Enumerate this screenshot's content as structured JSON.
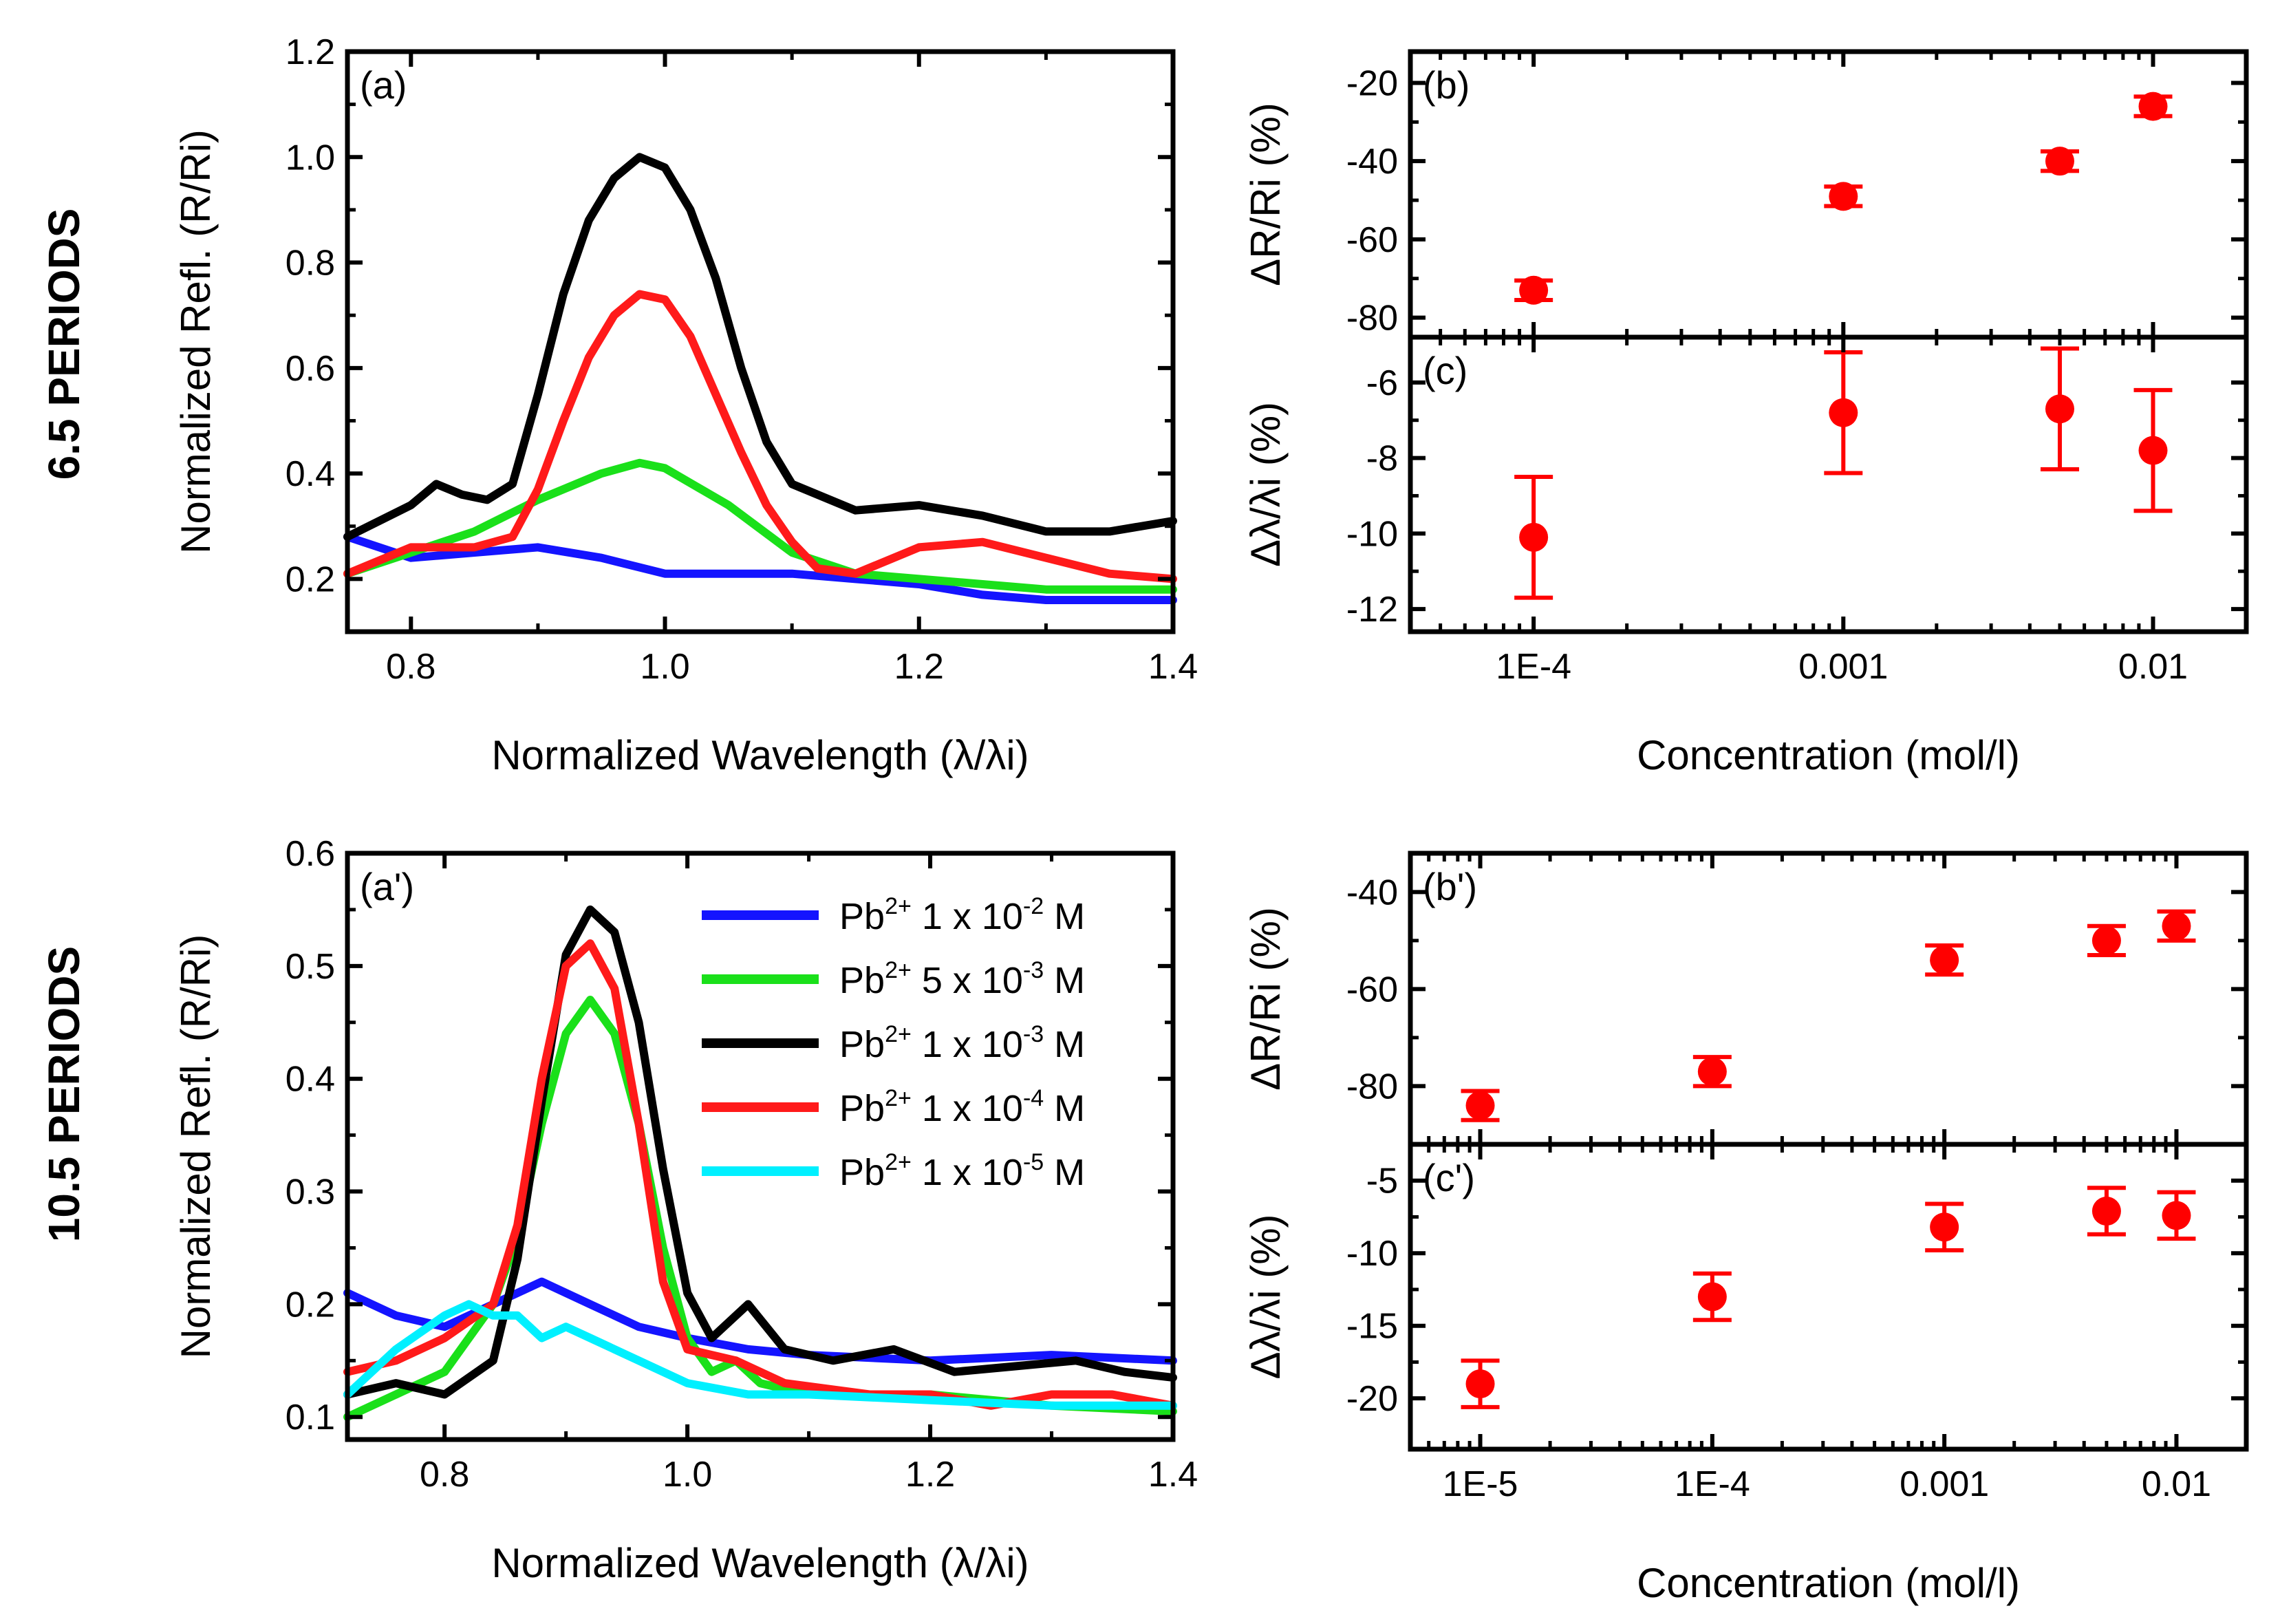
{
  "figure": {
    "row_titles": [
      "6.5 PERIODS",
      "10.5 PERIODS"
    ],
    "colors": {
      "blue": "#1414ff",
      "green": "#1ae01a",
      "black": "#000000",
      "red": "#ff1a1a",
      "cyan": "#00f0ff",
      "marker": "#ff0000"
    }
  },
  "chart_data": [
    {
      "id": "a",
      "type": "line",
      "panel_label": "(a)",
      "xlabel": "Normalized Wavelength (λ/λi)",
      "ylabel": "Normalized Refl. (R/Ri)",
      "xlim": [
        0.75,
        1.4
      ],
      "ylim": [
        0.1,
        1.2
      ],
      "xticks": [
        0.8,
        1.0,
        1.2,
        1.4
      ],
      "xtick_labels": [
        "0.8",
        "1.0",
        "1.2",
        "1.4"
      ],
      "yticks": [
        0.2,
        0.4,
        0.6,
        0.8,
        1.0,
        1.2
      ],
      "ytick_labels": [
        "0.2",
        "0.4",
        "0.6",
        "0.8",
        "1.0",
        "1.2"
      ],
      "series": [
        {
          "name": "Pb2+ 1 x 10-2 M",
          "color": "blue",
          "x": [
            0.75,
            0.8,
            0.85,
            0.9,
            0.95,
            1.0,
            1.05,
            1.1,
            1.15,
            1.2,
            1.25,
            1.3,
            1.35,
            1.4
          ],
          "y": [
            0.28,
            0.24,
            0.25,
            0.26,
            0.24,
            0.21,
            0.21,
            0.21,
            0.2,
            0.19,
            0.17,
            0.16,
            0.16,
            0.16
          ]
        },
        {
          "name": "Pb2+ 5 x 10-3 M",
          "color": "green",
          "x": [
            0.75,
            0.8,
            0.85,
            0.9,
            0.95,
            0.98,
            1.0,
            1.05,
            1.1,
            1.15,
            1.2,
            1.25,
            1.3,
            1.35,
            1.4
          ],
          "y": [
            0.21,
            0.25,
            0.29,
            0.35,
            0.4,
            0.42,
            0.41,
            0.34,
            0.25,
            0.21,
            0.2,
            0.19,
            0.18,
            0.18,
            0.18
          ]
        },
        {
          "name": "Pb2+ 1 x 10-3 M",
          "color": "black",
          "x": [
            0.75,
            0.8,
            0.82,
            0.84,
            0.86,
            0.88,
            0.9,
            0.92,
            0.94,
            0.96,
            0.98,
            1.0,
            1.02,
            1.04,
            1.06,
            1.08,
            1.1,
            1.15,
            1.2,
            1.25,
            1.3,
            1.35,
            1.4
          ],
          "y": [
            0.28,
            0.34,
            0.38,
            0.36,
            0.35,
            0.38,
            0.55,
            0.74,
            0.88,
            0.96,
            1.0,
            0.98,
            0.9,
            0.77,
            0.6,
            0.46,
            0.38,
            0.33,
            0.34,
            0.32,
            0.29,
            0.29,
            0.31
          ]
        },
        {
          "name": "Pb2+ 1 x 10-4 M",
          "color": "red",
          "x": [
            0.75,
            0.8,
            0.85,
            0.88,
            0.9,
            0.92,
            0.94,
            0.96,
            0.98,
            1.0,
            1.02,
            1.04,
            1.06,
            1.08,
            1.1,
            1.12,
            1.15,
            1.2,
            1.25,
            1.3,
            1.35,
            1.4
          ],
          "y": [
            0.21,
            0.26,
            0.26,
            0.28,
            0.37,
            0.5,
            0.62,
            0.7,
            0.74,
            0.73,
            0.66,
            0.55,
            0.44,
            0.34,
            0.27,
            0.22,
            0.21,
            0.26,
            0.27,
            0.24,
            0.21,
            0.2
          ]
        }
      ]
    },
    {
      "id": "b",
      "type": "scatter",
      "panel_label": "(b)",
      "xscale": "log",
      "ylabel": "ΔR/Ri (%)",
      "xlim": [
        4e-05,
        0.02
      ],
      "ylim": [
        -85,
        -12
      ],
      "yticks": [
        -80,
        -60,
        -40,
        -20
      ],
      "ytick_labels": [
        "-80",
        "-60",
        "-40",
        "-20"
      ],
      "points": {
        "x": [
          0.0001,
          0.001,
          0.005,
          0.01
        ],
        "y": [
          -73,
          -49,
          -40,
          -26
        ],
        "yerr": [
          2.5,
          2.5,
          2.5,
          2.5
        ]
      }
    },
    {
      "id": "c",
      "type": "scatter",
      "panel_label": "(c)",
      "xscale": "log",
      "xlabel": "Concentration (mol/l)",
      "ylabel": "Δλ/λi (%)",
      "xlim": [
        4e-05,
        0.02
      ],
      "ylim": [
        -12.6,
        -4.8
      ],
      "xticks": [
        0.0001,
        0.001,
        0.01
      ],
      "xtick_labels": [
        "1E-4",
        "0.001",
        "0.01"
      ],
      "yticks": [
        -12,
        -10,
        -8,
        -6
      ],
      "ytick_labels": [
        "-12",
        "-10",
        "-8",
        "-6"
      ],
      "points": {
        "x": [
          0.0001,
          0.001,
          0.005,
          0.01
        ],
        "y": [
          -10.1,
          -6.8,
          -6.7,
          -7.8
        ],
        "yerr": [
          1.6,
          1.6,
          1.6,
          1.6
        ]
      }
    },
    {
      "id": "a-prime",
      "type": "line",
      "panel_label": "(a')",
      "xlabel": "Normalized Wavelength (λ/λi)",
      "ylabel": "Normalized Refl. (R/Ri)",
      "xlim": [
        0.72,
        1.4
      ],
      "ylim": [
        0.08,
        0.6
      ],
      "xticks": [
        0.8,
        1.0,
        1.2,
        1.4
      ],
      "xtick_labels": [
        "0.8",
        "1.0",
        "1.2",
        "1.4"
      ],
      "yticks": [
        0.1,
        0.2,
        0.3,
        0.4,
        0.5,
        0.6
      ],
      "ytick_labels": [
        "0.1",
        "0.2",
        "0.3",
        "0.4",
        "0.5",
        "0.6"
      ],
      "series": [
        {
          "name": "Pb2+ 1 x 10-2 M",
          "color": "blue",
          "x": [
            0.72,
            0.76,
            0.8,
            0.84,
            0.88,
            0.92,
            0.96,
            1.0,
            1.05,
            1.1,
            1.2,
            1.3,
            1.4
          ],
          "y": [
            0.21,
            0.19,
            0.18,
            0.2,
            0.22,
            0.2,
            0.18,
            0.17,
            0.16,
            0.155,
            0.15,
            0.155,
            0.15
          ]
        },
        {
          "name": "Pb2+ 5 x 10-3 M",
          "color": "green",
          "x": [
            0.72,
            0.76,
            0.8,
            0.84,
            0.86,
            0.88,
            0.9,
            0.92,
            0.94,
            0.96,
            0.98,
            1.0,
            1.02,
            1.04,
            1.06,
            1.1,
            1.2,
            1.3,
            1.4
          ],
          "y": [
            0.1,
            0.12,
            0.14,
            0.2,
            0.26,
            0.36,
            0.44,
            0.47,
            0.44,
            0.36,
            0.25,
            0.17,
            0.14,
            0.15,
            0.13,
            0.12,
            0.12,
            0.11,
            0.105
          ]
        },
        {
          "name": "Pb2+ 1 x 10-3 M",
          "color": "black",
          "x": [
            0.72,
            0.76,
            0.8,
            0.84,
            0.86,
            0.88,
            0.9,
            0.92,
            0.94,
            0.96,
            0.98,
            1.0,
            1.02,
            1.05,
            1.08,
            1.12,
            1.17,
            1.22,
            1.27,
            1.32,
            1.36,
            1.4
          ],
          "y": [
            0.12,
            0.13,
            0.12,
            0.15,
            0.24,
            0.38,
            0.51,
            0.55,
            0.53,
            0.45,
            0.32,
            0.21,
            0.17,
            0.2,
            0.16,
            0.15,
            0.16,
            0.14,
            0.145,
            0.15,
            0.14,
            0.135
          ]
        },
        {
          "name": "Pb2+ 1 x 10-4 M",
          "color": "red",
          "x": [
            0.72,
            0.76,
            0.8,
            0.84,
            0.86,
            0.88,
            0.9,
            0.92,
            0.94,
            0.96,
            0.98,
            1.0,
            1.04,
            1.08,
            1.15,
            1.2,
            1.25,
            1.3,
            1.35,
            1.4
          ],
          "y": [
            0.14,
            0.15,
            0.17,
            0.2,
            0.27,
            0.4,
            0.5,
            0.52,
            0.48,
            0.36,
            0.22,
            0.16,
            0.15,
            0.13,
            0.12,
            0.12,
            0.11,
            0.12,
            0.12,
            0.11
          ]
        },
        {
          "name": "Pb2+ 1 x 10-5 M",
          "color": "cyan",
          "x": [
            0.72,
            0.76,
            0.8,
            0.82,
            0.84,
            0.86,
            0.88,
            0.9,
            0.92,
            0.96,
            1.0,
            1.05,
            1.1,
            1.2,
            1.3,
            1.4
          ],
          "y": [
            0.12,
            0.16,
            0.19,
            0.2,
            0.19,
            0.19,
            0.17,
            0.18,
            0.17,
            0.15,
            0.13,
            0.12,
            0.12,
            0.115,
            0.11,
            0.11
          ]
        }
      ]
    },
    {
      "id": "b-prime",
      "type": "scatter",
      "panel_label": "(b')",
      "xscale": "log",
      "ylabel": "ΔR/Ri (%)",
      "xlim": [
        5e-06,
        0.02
      ],
      "ylim": [
        -92,
        -32
      ],
      "yticks": [
        -80,
        -60,
        -40
      ],
      "ytick_labels": [
        "-80",
        "-60",
        "-40"
      ],
      "points": {
        "x": [
          1e-05,
          0.0001,
          0.001,
          0.005,
          0.01
        ],
        "y": [
          -84,
          -77,
          -54,
          -50,
          -47
        ],
        "yerr": [
          3,
          3,
          3,
          3,
          3
        ]
      }
    },
    {
      "id": "c-prime",
      "type": "scatter",
      "panel_label": "(c')",
      "xscale": "log",
      "xlabel": "Concentration (mol/l)",
      "ylabel": "Δλ/λi (%)",
      "xlim": [
        5e-06,
        0.02
      ],
      "ylim": [
        -23.5,
        -2.5
      ],
      "xticks": [
        1e-05,
        0.0001,
        0.001,
        0.01
      ],
      "xtick_labels": [
        "1E-5",
        "1E-4",
        "0.001",
        "0.01"
      ],
      "yticks": [
        -20,
        -15,
        -10,
        -5
      ],
      "ytick_labels": [
        "-20",
        "-15",
        "-10",
        "-5"
      ],
      "points": {
        "x": [
          1e-05,
          0.0001,
          0.001,
          0.005,
          0.01
        ],
        "y": [
          -19,
          -13,
          -8.2,
          -7.1,
          -7.4
        ],
        "yerr": [
          1.6,
          1.6,
          1.6,
          1.6,
          1.6
        ]
      }
    }
  ],
  "legend": {
    "items": [
      {
        "color": "blue",
        "base": "Pb",
        "ion": "2+",
        "mantissa": "1 x 10",
        "exp": "-2",
        "unit": "M"
      },
      {
        "color": "green",
        "base": "Pb",
        "ion": "2+",
        "mantissa": "5 x 10",
        "exp": "-3",
        "unit": "M"
      },
      {
        "color": "black",
        "base": "Pb",
        "ion": "2+",
        "mantissa": "1 x 10",
        "exp": "-3",
        "unit": "M"
      },
      {
        "color": "red",
        "base": "Pb",
        "ion": "2+",
        "mantissa": "1 x 10",
        "exp": "-4",
        "unit": "M"
      },
      {
        "color": "cyan",
        "base": "Pb",
        "ion": "2+",
        "mantissa": "1 x 10",
        "exp": "-5",
        "unit": "M"
      }
    ]
  }
}
